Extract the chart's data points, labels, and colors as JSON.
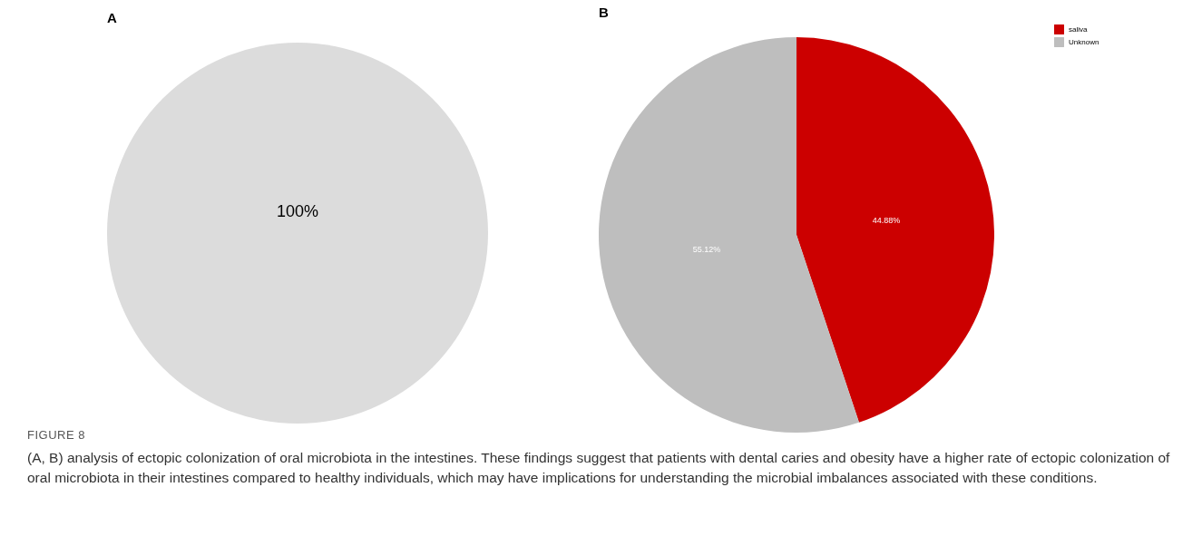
{
  "chart_data": [
    {
      "type": "pie",
      "title": "A",
      "categories": [
        null
      ],
      "values": [
        100
      ],
      "colors": [
        "#dcdcdc"
      ],
      "value_labels": [
        "100%"
      ],
      "legend": false
    },
    {
      "type": "pie",
      "title": "B",
      "categories": [
        "saliva",
        "Unknown"
      ],
      "values": [
        44.88,
        55.12
      ],
      "colors": [
        "#cc0000",
        "#bebebe"
      ],
      "value_labels": [
        "44.88%",
        "55.12%"
      ],
      "legend": "right"
    },
    {
      "type": "other",
      "title": "FIGURE 8",
      "annotations": [
        "(A, B) analysis of ectopic colonization of oral microbiota in the intestines. These findings suggest that patients with dental caries and obesity have a higher rate of ectopic colonization of oral microbiota in their intestines compared to healthy individuals, which may have implications for understanding the microbial imbalances associated with these conditions."
      ]
    }
  ]
}
